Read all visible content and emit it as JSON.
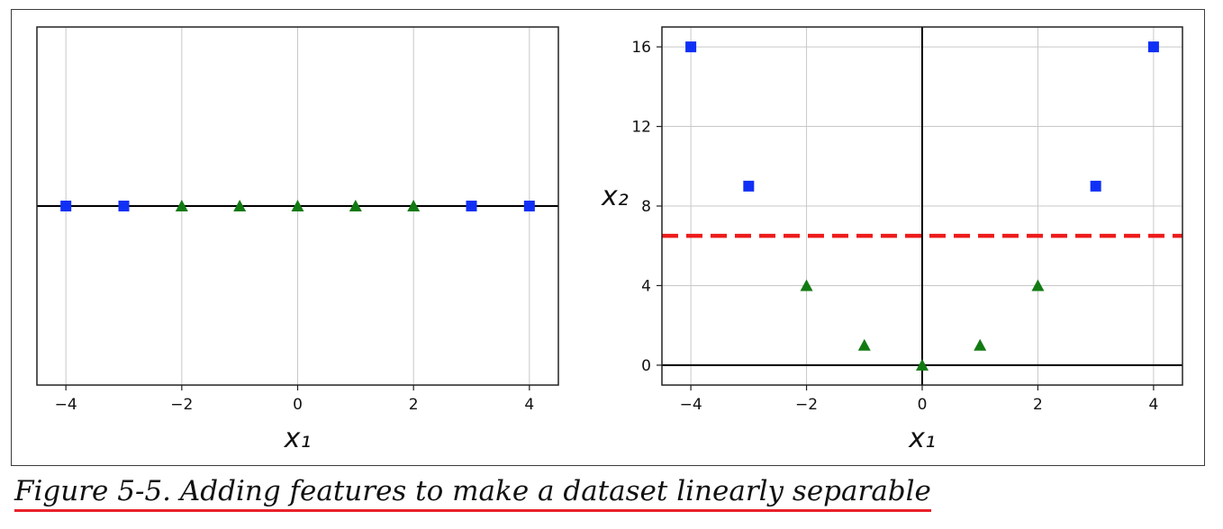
{
  "caption": "Figure 5-5. Adding features to make a dataset linearly separable",
  "colors": {
    "square": "#1130f5",
    "triangle": "#137a13",
    "boundary": "#ee1c1c",
    "grid": "#c8c8c8",
    "axis": "#000000"
  },
  "chart_data": [
    {
      "type": "scatter",
      "title": "",
      "xlabel": "x₁",
      "ylabel": "",
      "xlim": [
        -4.5,
        4.5
      ],
      "ylim": [
        -0.2,
        0.2
      ],
      "xticks": [
        -4,
        -2,
        0,
        2,
        4
      ],
      "xtick_labels": [
        "−4",
        "−2",
        "0",
        "2",
        "4"
      ],
      "yticks": [],
      "grid": true,
      "axis_lines": {
        "horizontal_at_y": 0
      },
      "series": [
        {
          "marker": "square",
          "color": "#1130f5",
          "points": [
            [
              -4,
              0
            ],
            [
              -3,
              0
            ],
            [
              3,
              0
            ],
            [
              4,
              0
            ]
          ]
        },
        {
          "marker": "triangle",
          "color": "#137a13",
          "points": [
            [
              -2,
              0
            ],
            [
              -1,
              0
            ],
            [
              0,
              0
            ],
            [
              1,
              0
            ],
            [
              2,
              0
            ]
          ]
        }
      ]
    },
    {
      "type": "scatter",
      "title": "",
      "xlabel": "x₁",
      "ylabel": "x₂",
      "xlim": [
        -4.5,
        4.5
      ],
      "ylim": [
        -1,
        17
      ],
      "xticks": [
        -4,
        -2,
        0,
        2,
        4
      ],
      "xtick_labels": [
        "−4",
        "−2",
        "0",
        "2",
        "4"
      ],
      "yticks": [
        0,
        4,
        8,
        12,
        16
      ],
      "ytick_labels": [
        "0",
        "4",
        "8",
        "12",
        "16"
      ],
      "grid": true,
      "axis_lines": {
        "horizontal_at_y": 0,
        "vertical_at_x": 0
      },
      "series": [
        {
          "marker": "square",
          "color": "#1130f5",
          "points": [
            [
              -4,
              16
            ],
            [
              -3,
              9
            ],
            [
              3,
              9
            ],
            [
              4,
              16
            ]
          ]
        },
        {
          "marker": "triangle",
          "color": "#137a13",
          "points": [
            [
              -2,
              4
            ],
            [
              -1,
              1
            ],
            [
              0,
              0
            ],
            [
              1,
              1
            ],
            [
              2,
              4
            ]
          ]
        }
      ],
      "decision_boundary": {
        "y": 6.5,
        "style": "dashed",
        "color": "#ee1c1c"
      }
    }
  ]
}
